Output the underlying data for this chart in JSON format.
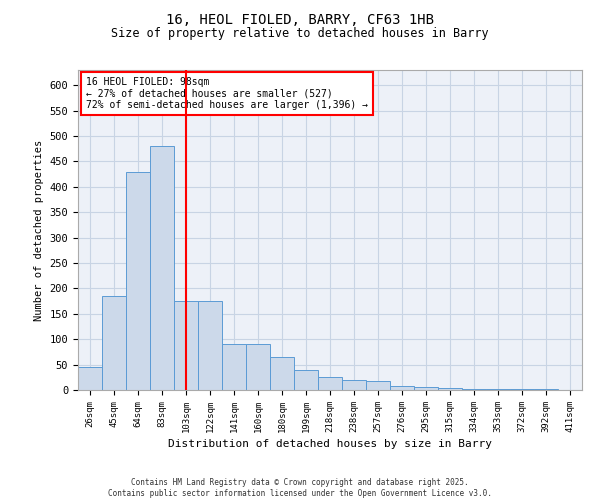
{
  "title_line1": "16, HEOL FIOLED, BARRY, CF63 1HB",
  "title_line2": "Size of property relative to detached houses in Barry",
  "xlabel": "Distribution of detached houses by size in Barry",
  "ylabel": "Number of detached properties",
  "categories": [
    "26sqm",
    "45sqm",
    "64sqm",
    "83sqm",
    "103sqm",
    "122sqm",
    "141sqm",
    "160sqm",
    "180sqm",
    "199sqm",
    "218sqm",
    "238sqm",
    "257sqm",
    "276sqm",
    "295sqm",
    "315sqm",
    "334sqm",
    "353sqm",
    "372sqm",
    "392sqm",
    "411sqm"
  ],
  "values": [
    45,
    185,
    430,
    480,
    175,
    175,
    90,
    90,
    65,
    40,
    25,
    20,
    18,
    8,
    5,
    3,
    2,
    2,
    1,
    1,
    0
  ],
  "bar_color": "#ccd9ea",
  "bar_edge_color": "#5b9bd5",
  "grid_color": "#c8d4e4",
  "vline_x": 4,
  "vline_color": "red",
  "annotation_text": "16 HEOL FIOLED: 98sqm\n← 27% of detached houses are smaller (527)\n72% of semi-detached houses are larger (1,396) →",
  "ylim": [
    0,
    630
  ],
  "yticks": [
    0,
    50,
    100,
    150,
    200,
    250,
    300,
    350,
    400,
    450,
    500,
    550,
    600
  ],
  "footnote": "Contains HM Land Registry data © Crown copyright and database right 2025.\nContains public sector information licensed under the Open Government Licence v3.0.",
  "bg_color": "#edf1f8"
}
